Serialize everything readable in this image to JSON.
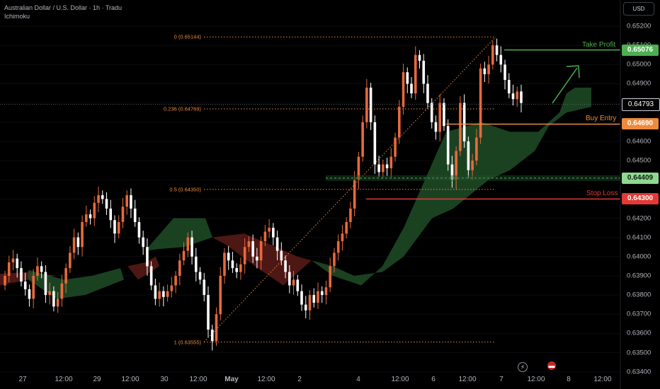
{
  "header": {
    "title": "Australian Dollar / U.S. Dollar · 1h · Tradu",
    "indicator": "Ichimoku"
  },
  "currency_button": "USD",
  "colors": {
    "background": "#000000",
    "bull": "#e8693c",
    "bear": "#ffffff",
    "take_profit": "#4caf50",
    "buy_entry": "#f08a3a",
    "stop_loss": "#e53935",
    "fib": "#f08a3a",
    "cloud_bull": "#1e4d27",
    "cloud_bear": "#5a1b17"
  },
  "icons": [
    "lightning-icon",
    "flag-icon"
  ],
  "chart_data": {
    "type": "candlestick",
    "title": "Australian Dollar / U.S. Dollar · 1h · Tradu",
    "ylim": [
      0.634,
      0.6528
    ],
    "y_ticks": [
      "0.65200",
      "0.65100",
      "0.65000",
      "0.64900",
      "0.64800",
      "0.64700",
      "0.64600",
      "0.64500",
      "0.64400",
      "0.64300",
      "0.64200",
      "0.64100",
      "0.64000",
      "0.63900",
      "0.63800",
      "0.63700",
      "0.63600",
      "0.63500",
      "0.63400"
    ],
    "x_ticks": [
      "27",
      "12:00",
      "29",
      "12:00",
      "30",
      "12:00",
      "May",
      "12:00",
      "2",
      "4",
      "12:00",
      "6",
      "12:00",
      "7",
      "12:00",
      "8",
      "12:00"
    ],
    "current_price": "0.64793",
    "levels": [
      {
        "label": "Take Profit",
        "price": "0.65076",
        "color": "#4caf50"
      },
      {
        "label": "Buy Entry",
        "price": "0.64690",
        "color": "#f08a3a"
      },
      {
        "label": "",
        "price": "0.64409",
        "color": "#4caf50"
      },
      {
        "label": "Stop Loss",
        "price": "0.64300",
        "color": "#e53935"
      }
    ],
    "fibonacci": [
      {
        "label": "0 (0.65144)",
        "price": 0.65144
      },
      {
        "label": "0.236 (0.64769)",
        "price": 0.64769
      },
      {
        "label": "0.5 (0.64350)",
        "price": 0.6435
      },
      {
        "label": "1 (0.63555)",
        "price": 0.63555
      }
    ],
    "closes": [
      0.639,
      0.6397,
      0.6399,
      0.6394,
      0.6387,
      0.6383,
      0.6378,
      0.639,
      0.6395,
      0.6392,
      0.638,
      0.6382,
      0.6374,
      0.6378,
      0.6386,
      0.6394,
      0.6402,
      0.641,
      0.6405,
      0.6418,
      0.6422,
      0.642,
      0.6428,
      0.6432,
      0.643,
      0.6425,
      0.6419,
      0.6412,
      0.6418,
      0.6426,
      0.6432,
      0.6425,
      0.6418,
      0.641,
      0.6405,
      0.6395,
      0.6385,
      0.6378,
      0.6382,
      0.6379,
      0.6382,
      0.6385,
      0.639,
      0.6398,
      0.6403,
      0.641,
      0.64,
      0.6392,
      0.6388,
      0.638,
      0.6362,
      0.6356,
      0.637,
      0.639,
      0.6402,
      0.6398,
      0.6394,
      0.6392,
      0.6396,
      0.6405,
      0.6408,
      0.64,
      0.6398,
      0.6408,
      0.6413,
      0.6415,
      0.641,
      0.6403,
      0.6398,
      0.6392,
      0.6385,
      0.6388,
      0.6382,
      0.6375,
      0.6372,
      0.638,
      0.6376,
      0.6382,
      0.638,
      0.6384,
      0.6395,
      0.6402,
      0.6408,
      0.6412,
      0.6418,
      0.6425,
      0.644,
      0.6452,
      0.647,
      0.6488,
      0.647,
      0.6448,
      0.6444,
      0.6448,
      0.6446,
      0.6452,
      0.6462,
      0.6478,
      0.6496,
      0.649,
      0.6485,
      0.6505,
      0.6502,
      0.649,
      0.648,
      0.647,
      0.6465,
      0.648,
      0.6468,
      0.6448,
      0.644,
      0.6455,
      0.648,
      0.646,
      0.6445,
      0.645,
      0.6462,
      0.6498,
      0.6495,
      0.65,
      0.651,
      0.6505,
      0.65,
      0.6492,
      0.6485,
      0.6482,
      0.6486,
      0.648
    ]
  }
}
